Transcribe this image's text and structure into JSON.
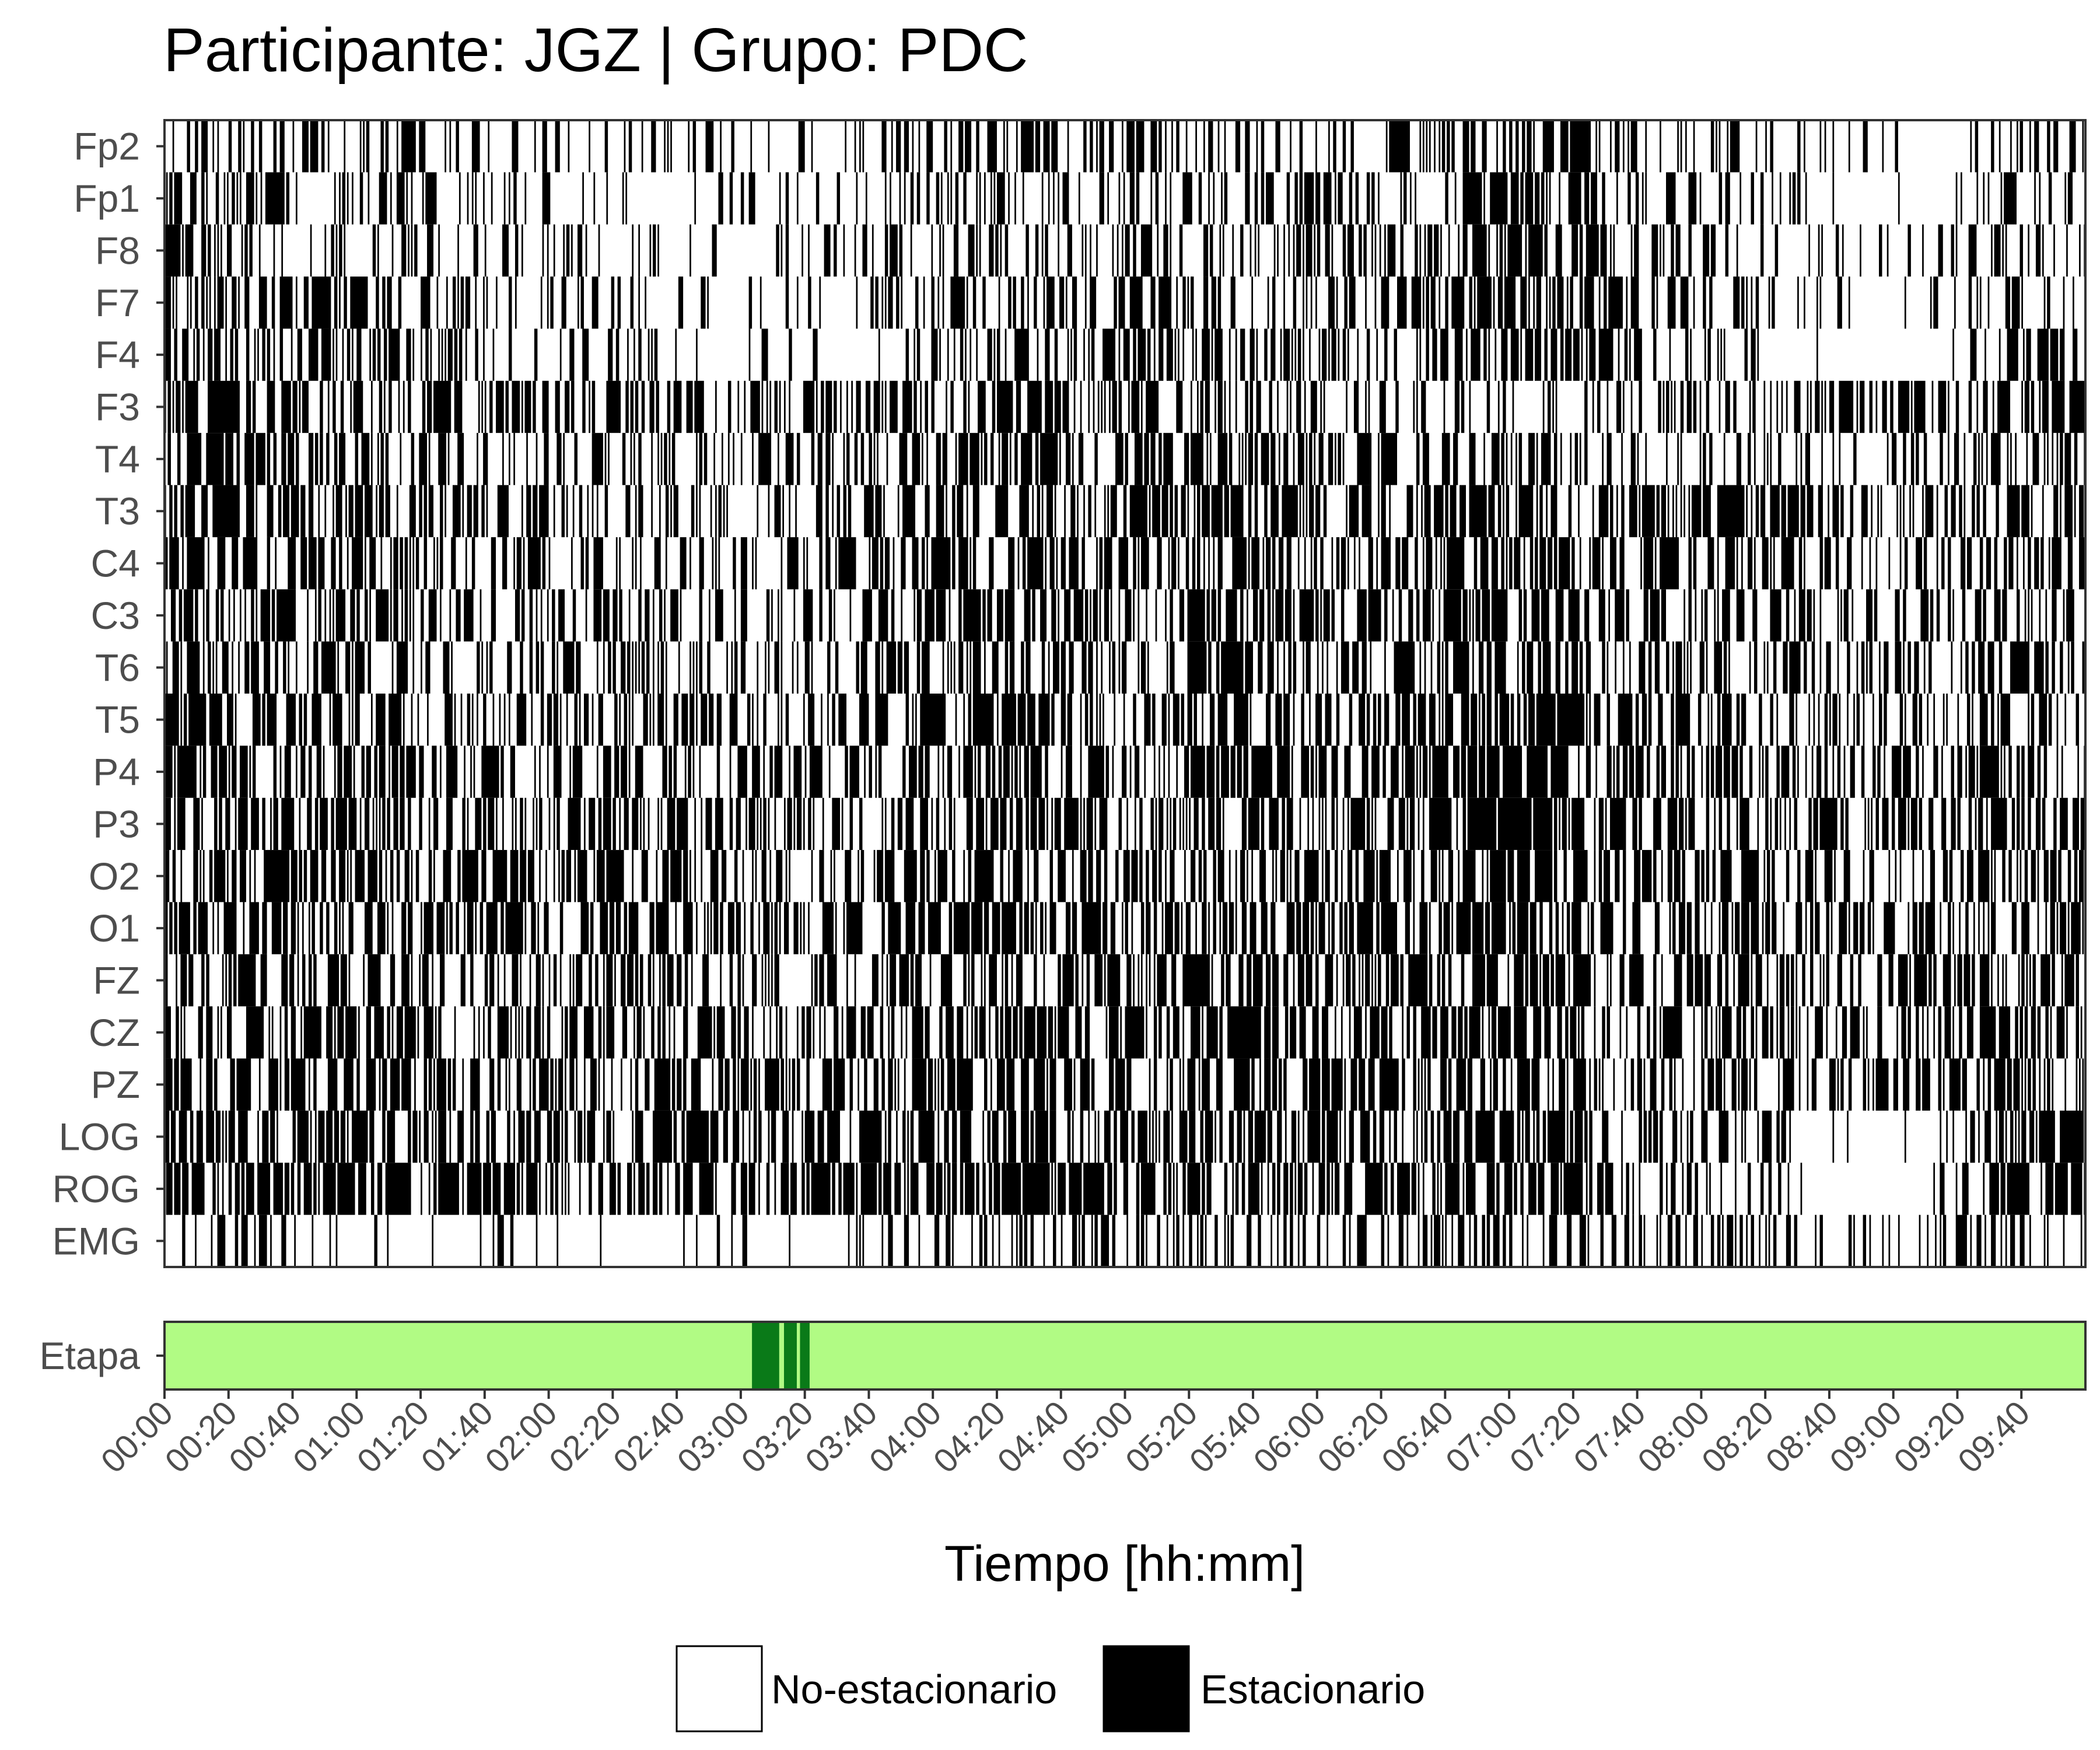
{
  "chart_data": {
    "type": "heatmap",
    "title": "Participante: JGZ | Grupo: PDC",
    "xlabel": "Tiempo [hh:mm]",
    "x_range_minutes": [
      0,
      600
    ],
    "x_ticks": [
      "00:00",
      "00:20",
      "00:40",
      "01:00",
      "01:20",
      "01:40",
      "02:00",
      "02:20",
      "02:40",
      "03:00",
      "03:20",
      "03:40",
      "04:00",
      "04:20",
      "04:40",
      "05:00",
      "05:20",
      "05:40",
      "06:00",
      "06:20",
      "06:40",
      "07:00",
      "07:20",
      "07:40",
      "08:00",
      "08:20",
      "08:40",
      "09:00",
      "09:20",
      "09:40"
    ],
    "channels": [
      "Fp2",
      "Fp1",
      "F8",
      "F7",
      "F4",
      "F3",
      "T4",
      "T3",
      "C4",
      "C3",
      "T6",
      "T5",
      "P4",
      "P3",
      "O2",
      "O1",
      "FZ",
      "CZ",
      "PZ",
      "LOG",
      "ROG",
      "EMG"
    ],
    "states": [
      "No-estacionario",
      "Estacionario"
    ],
    "state_colors": {
      "No-estacionario": "#ffffff",
      "Estacionario": "#000000"
    },
    "grid": false,
    "legend_position": "bottom",
    "note_on_values": "per-channel stationary fraction per 20-minute bin (estimated density of black 'Estacionario' epochs)",
    "stationary_fraction": {
      "Fp2": [
        0.45,
        0.4,
        0.35,
        0.35,
        0.35,
        0.3,
        0.25,
        0.3,
        0.25,
        0.15,
        0.2,
        0.35,
        0.4,
        0.45,
        0.4,
        0.45,
        0.45,
        0.4,
        0.4,
        0.45,
        0.55,
        0.6,
        0.35,
        0.3,
        0.35,
        0.3,
        0.2,
        0.15,
        0.3,
        0.25
      ],
      "Fp1": [
        0.5,
        0.45,
        0.4,
        0.35,
        0.35,
        0.3,
        0.3,
        0.3,
        0.25,
        0.2,
        0.25,
        0.35,
        0.45,
        0.45,
        0.4,
        0.45,
        0.45,
        0.45,
        0.4,
        0.45,
        0.55,
        0.6,
        0.35,
        0.35,
        0.35,
        0.3,
        0.2,
        0.15,
        0.3,
        0.25
      ],
      "F8": [
        0.5,
        0.45,
        0.45,
        0.35,
        0.3,
        0.3,
        0.3,
        0.3,
        0.25,
        0.2,
        0.25,
        0.35,
        0.4,
        0.4,
        0.4,
        0.45,
        0.4,
        0.4,
        0.4,
        0.45,
        0.55,
        0.55,
        0.4,
        0.4,
        0.35,
        0.3,
        0.2,
        0.15,
        0.35,
        0.3
      ],
      "F7": [
        0.55,
        0.5,
        0.45,
        0.4,
        0.35,
        0.3,
        0.3,
        0.3,
        0.25,
        0.2,
        0.25,
        0.35,
        0.4,
        0.5,
        0.4,
        0.45,
        0.45,
        0.4,
        0.4,
        0.45,
        0.6,
        0.6,
        0.45,
        0.4,
        0.35,
        0.3,
        0.2,
        0.15,
        0.35,
        0.3
      ],
      "F4": [
        0.5,
        0.45,
        0.45,
        0.4,
        0.3,
        0.3,
        0.3,
        0.3,
        0.25,
        0.25,
        0.25,
        0.35,
        0.4,
        0.4,
        0.4,
        0.45,
        0.45,
        0.4,
        0.4,
        0.45,
        0.6,
        0.6,
        0.4,
        0.4,
        0.35,
        0.3,
        0.05,
        0.05,
        0.4,
        0.3
      ],
      "F3": [
        0.6,
        0.55,
        0.5,
        0.45,
        0.4,
        0.4,
        0.4,
        0.45,
        0.45,
        0.4,
        0.45,
        0.5,
        0.5,
        0.5,
        0.45,
        0.45,
        0.45,
        0.4,
        0.4,
        0.4,
        0.4,
        0.4,
        0.35,
        0.4,
        0.45,
        0.55,
        0.6,
        0.55,
        0.55,
        0.6
      ],
      "T4": [
        0.65,
        0.6,
        0.5,
        0.45,
        0.4,
        0.4,
        0.45,
        0.45,
        0.4,
        0.35,
        0.45,
        0.5,
        0.55,
        0.55,
        0.45,
        0.55,
        0.6,
        0.55,
        0.5,
        0.45,
        0.45,
        0.45,
        0.3,
        0.3,
        0.3,
        0.35,
        0.25,
        0.35,
        0.55,
        0.5
      ],
      "T3": [
        0.7,
        0.65,
        0.55,
        0.5,
        0.45,
        0.4,
        0.45,
        0.45,
        0.4,
        0.35,
        0.4,
        0.5,
        0.55,
        0.55,
        0.45,
        0.55,
        0.65,
        0.6,
        0.5,
        0.55,
        0.65,
        0.65,
        0.45,
        0.55,
        0.6,
        0.55,
        0.4,
        0.35,
        0.6,
        0.5
      ],
      "C4": [
        0.6,
        0.55,
        0.5,
        0.45,
        0.4,
        0.4,
        0.4,
        0.4,
        0.4,
        0.35,
        0.4,
        0.45,
        0.55,
        0.55,
        0.45,
        0.5,
        0.55,
        0.5,
        0.5,
        0.55,
        0.65,
        0.65,
        0.4,
        0.45,
        0.45,
        0.4,
        0.3,
        0.35,
        0.5,
        0.45
      ],
      "C3": [
        0.6,
        0.55,
        0.5,
        0.5,
        0.45,
        0.4,
        0.45,
        0.45,
        0.4,
        0.4,
        0.45,
        0.5,
        0.55,
        0.55,
        0.45,
        0.5,
        0.55,
        0.5,
        0.5,
        0.55,
        0.65,
        0.65,
        0.4,
        0.55,
        0.5,
        0.45,
        0.35,
        0.35,
        0.55,
        0.45
      ],
      "T6": [
        0.6,
        0.55,
        0.55,
        0.5,
        0.45,
        0.4,
        0.45,
        0.5,
        0.45,
        0.35,
        0.4,
        0.45,
        0.55,
        0.55,
        0.45,
        0.5,
        0.55,
        0.5,
        0.5,
        0.55,
        0.65,
        0.6,
        0.4,
        0.5,
        0.45,
        0.4,
        0.35,
        0.35,
        0.5,
        0.45
      ],
      "T5": [
        0.6,
        0.55,
        0.55,
        0.5,
        0.45,
        0.4,
        0.45,
        0.5,
        0.45,
        0.35,
        0.45,
        0.5,
        0.55,
        0.55,
        0.45,
        0.5,
        0.55,
        0.5,
        0.5,
        0.55,
        0.65,
        0.65,
        0.45,
        0.5,
        0.5,
        0.4,
        0.35,
        0.35,
        0.55,
        0.45
      ],
      "P4": [
        0.6,
        0.55,
        0.55,
        0.5,
        0.45,
        0.4,
        0.45,
        0.45,
        0.45,
        0.35,
        0.4,
        0.5,
        0.6,
        0.6,
        0.45,
        0.55,
        0.6,
        0.55,
        0.5,
        0.55,
        0.65,
        0.65,
        0.4,
        0.5,
        0.5,
        0.4,
        0.35,
        0.35,
        0.55,
        0.45
      ],
      "P3": [
        0.6,
        0.55,
        0.55,
        0.5,
        0.45,
        0.45,
        0.45,
        0.5,
        0.5,
        0.4,
        0.45,
        0.5,
        0.6,
        0.6,
        0.45,
        0.55,
        0.6,
        0.55,
        0.55,
        0.55,
        0.65,
        0.65,
        0.45,
        0.5,
        0.5,
        0.45,
        0.35,
        0.35,
        0.55,
        0.45
      ],
      "O2": [
        0.6,
        0.6,
        0.55,
        0.55,
        0.5,
        0.45,
        0.5,
        0.55,
        0.5,
        0.4,
        0.45,
        0.55,
        0.65,
        0.65,
        0.5,
        0.55,
        0.6,
        0.55,
        0.55,
        0.6,
        0.7,
        0.65,
        0.45,
        0.55,
        0.55,
        0.45,
        0.4,
        0.4,
        0.55,
        0.5
      ],
      "O1": [
        0.6,
        0.6,
        0.55,
        0.55,
        0.5,
        0.45,
        0.5,
        0.55,
        0.5,
        0.4,
        0.45,
        0.55,
        0.65,
        0.65,
        0.5,
        0.55,
        0.6,
        0.55,
        0.55,
        0.6,
        0.7,
        0.65,
        0.45,
        0.55,
        0.55,
        0.45,
        0.4,
        0.4,
        0.55,
        0.5
      ],
      "FZ": [
        0.55,
        0.5,
        0.5,
        0.5,
        0.45,
        0.45,
        0.45,
        0.5,
        0.5,
        0.4,
        0.45,
        0.5,
        0.55,
        0.55,
        0.45,
        0.5,
        0.55,
        0.5,
        0.5,
        0.55,
        0.6,
        0.6,
        0.45,
        0.5,
        0.5,
        0.4,
        0.55,
        0.55,
        0.55,
        0.5
      ],
      "CZ": [
        0.55,
        0.55,
        0.55,
        0.5,
        0.45,
        0.45,
        0.45,
        0.5,
        0.5,
        0.4,
        0.45,
        0.5,
        0.6,
        0.6,
        0.45,
        0.5,
        0.55,
        0.55,
        0.55,
        0.55,
        0.6,
        0.6,
        0.45,
        0.5,
        0.5,
        0.4,
        0.55,
        0.5,
        0.6,
        0.5
      ],
      "PZ": [
        0.55,
        0.55,
        0.55,
        0.5,
        0.45,
        0.45,
        0.45,
        0.5,
        0.5,
        0.4,
        0.45,
        0.5,
        0.6,
        0.6,
        0.45,
        0.5,
        0.6,
        0.55,
        0.55,
        0.55,
        0.6,
        0.6,
        0.45,
        0.5,
        0.5,
        0.4,
        0.5,
        0.5,
        0.6,
        0.5
      ],
      "LOG": [
        0.6,
        0.6,
        0.65,
        0.6,
        0.55,
        0.55,
        0.55,
        0.55,
        0.5,
        0.5,
        0.65,
        0.6,
        0.6,
        0.6,
        0.55,
        0.6,
        0.6,
        0.55,
        0.55,
        0.55,
        0.65,
        0.65,
        0.45,
        0.4,
        0.4,
        0.35,
        0.1,
        0.15,
        0.55,
        0.65
      ],
      "ROG": [
        0.6,
        0.6,
        0.65,
        0.6,
        0.55,
        0.55,
        0.55,
        0.55,
        0.5,
        0.5,
        0.65,
        0.6,
        0.6,
        0.6,
        0.55,
        0.6,
        0.6,
        0.55,
        0.55,
        0.55,
        0.65,
        0.65,
        0.45,
        0.4,
        0.4,
        0.2,
        0.1,
        0.15,
        0.55,
        0.65
      ],
      "EMG": [
        0.3,
        0.3,
        0.25,
        0.2,
        0.2,
        0.2,
        0.2,
        0.2,
        0.2,
        0.2,
        0.25,
        0.3,
        0.35,
        0.35,
        0.3,
        0.3,
        0.35,
        0.3,
        0.3,
        0.4,
        0.45,
        0.45,
        0.4,
        0.35,
        0.4,
        0.3,
        0.2,
        0.25,
        0.3,
        0.3
      ]
    },
    "etapa": {
      "label": "Etapa",
      "base_color": "#b1fb84",
      "highlight_color": "#0a7a18",
      "highlight_segments_minutes": [
        [
          183.5,
          192.0
        ],
        [
          193.5,
          197.5
        ],
        [
          198.5,
          201.5
        ]
      ]
    },
    "legend": [
      {
        "label": "No-estacionario",
        "color": "#ffffff"
      },
      {
        "label": "Estacionario",
        "color": "#000000"
      }
    ]
  }
}
